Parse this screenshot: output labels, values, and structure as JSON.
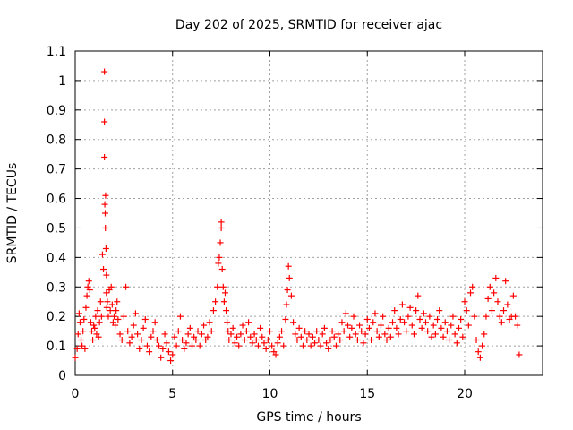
{
  "chart_data": {
    "type": "scatter",
    "title": "Day 202 of 2025, SRMTID for receiver ajac",
    "xlabel": "GPS time / hours",
    "ylabel": "SRMTID / TECUs",
    "xlim": [
      0,
      24
    ],
    "ylim": [
      0,
      1.1
    ],
    "x_ticks": [
      0,
      5,
      10,
      15,
      20
    ],
    "x_tick_labels": [
      "0",
      "5",
      "10",
      "15",
      "20"
    ],
    "y_ticks": [
      0,
      0.1,
      0.2,
      0.3,
      0.4,
      0.5,
      0.6,
      0.7,
      0.8,
      0.9,
      1,
      1.1
    ],
    "y_tick_labels": [
      "0",
      "0.1",
      "0.2",
      "0.3",
      "0.4",
      "0.5",
      "0.6",
      "0.7",
      "0.8",
      "0.9",
      "1",
      "1.1"
    ],
    "grid": true,
    "marker": "+",
    "color": "#ff0000",
    "series": [
      {
        "name": "SRMTID",
        "x": [
          0.0,
          0.1,
          0.15,
          0.2,
          0.25,
          0.3,
          0.35,
          0.4,
          0.45,
          0.5,
          0.55,
          0.6,
          0.65,
          0.7,
          0.75,
          0.8,
          0.85,
          0.9,
          0.95,
          1.0,
          1.05,
          1.1,
          1.15,
          1.2,
          1.25,
          1.3,
          1.35,
          1.4,
          1.45,
          1.5,
          1.5,
          1.5,
          1.52,
          1.54,
          1.55,
          1.56,
          1.58,
          1.6,
          1.6,
          1.62,
          1.65,
          1.7,
          1.75,
          1.8,
          1.85,
          1.9,
          1.95,
          2.0,
          2.05,
          2.1,
          2.15,
          2.2,
          2.3,
          2.4,
          2.5,
          2.6,
          2.7,
          2.8,
          2.9,
          3.0,
          3.1,
          3.2,
          3.3,
          3.4,
          3.5,
          3.6,
          3.7,
          3.8,
          3.9,
          4.0,
          4.1,
          4.2,
          4.3,
          4.4,
          4.5,
          4.6,
          4.7,
          4.8,
          4.9,
          5.0,
          5.1,
          5.2,
          5.3,
          5.4,
          5.5,
          5.6,
          5.7,
          5.8,
          5.9,
          6.0,
          6.1,
          6.2,
          6.3,
          6.4,
          6.5,
          6.6,
          6.7,
          6.8,
          6.9,
          7.0,
          7.1,
          7.2,
          7.3,
          7.35,
          7.4,
          7.45,
          7.5,
          7.5,
          7.55,
          7.6,
          7.65,
          7.7,
          7.75,
          7.8,
          7.85,
          7.9,
          8.0,
          8.1,
          8.2,
          8.3,
          8.4,
          8.5,
          8.6,
          8.7,
          8.8,
          8.9,
          9.0,
          9.1,
          9.2,
          9.3,
          9.4,
          9.5,
          9.6,
          9.7,
          9.8,
          9.9,
          10.0,
          10.1,
          10.2,
          10.3,
          10.4,
          10.5,
          10.6,
          10.7,
          10.8,
          10.85,
          10.9,
          10.95,
          11.0,
          11.1,
          11.2,
          11.3,
          11.4,
          11.5,
          11.6,
          11.7,
          11.8,
          11.9,
          12.0,
          12.1,
          12.2,
          12.3,
          12.4,
          12.5,
          12.6,
          12.7,
          12.8,
          12.9,
          13.0,
          13.1,
          13.2,
          13.3,
          13.4,
          13.5,
          13.6,
          13.7,
          13.8,
          13.9,
          14.0,
          14.1,
          14.2,
          14.3,
          14.4,
          14.5,
          14.6,
          14.7,
          14.8,
          14.9,
          15.0,
          15.1,
          15.2,
          15.3,
          15.4,
          15.5,
          15.6,
          15.7,
          15.8,
          15.9,
          16.0,
          16.1,
          16.2,
          16.3,
          16.4,
          16.5,
          16.6,
          16.7,
          16.8,
          16.9,
          17.0,
          17.1,
          17.2,
          17.3,
          17.4,
          17.5,
          17.6,
          17.7,
          17.8,
          17.9,
          18.0,
          18.1,
          18.2,
          18.3,
          18.4,
          18.5,
          18.6,
          18.7,
          18.8,
          18.9,
          19.0,
          19.1,
          19.2,
          19.3,
          19.4,
          19.5,
          19.6,
          19.7,
          19.8,
          19.9,
          20.0,
          20.1,
          20.2,
          20.3,
          20.4,
          20.5,
          20.6,
          20.7,
          20.8,
          20.9,
          21.0,
          21.1,
          21.2,
          21.3,
          21.4,
          21.5,
          21.6,
          21.7,
          21.8,
          21.9,
          22.0,
          22.1,
          22.2,
          22.3,
          22.4,
          22.5,
          22.6,
          22.7,
          22.8
        ],
        "y": [
          0.06,
          0.09,
          0.14,
          0.21,
          0.18,
          0.12,
          0.1,
          0.15,
          0.19,
          0.09,
          0.23,
          0.27,
          0.3,
          0.32,
          0.29,
          0.18,
          0.15,
          0.12,
          0.17,
          0.16,
          0.2,
          0.14,
          0.22,
          0.13,
          0.18,
          0.25,
          0.2,
          0.41,
          0.36,
          1.03,
          0.86,
          0.74,
          0.58,
          0.55,
          0.5,
          0.61,
          0.43,
          0.34,
          0.28,
          0.23,
          0.25,
          0.2,
          0.29,
          0.22,
          0.3,
          0.24,
          0.18,
          0.2,
          0.17,
          0.22,
          0.25,
          0.19,
          0.14,
          0.12,
          0.2,
          0.3,
          0.15,
          0.11,
          0.13,
          0.17,
          0.21,
          0.14,
          0.09,
          0.12,
          0.16,
          0.19,
          0.1,
          0.08,
          0.13,
          0.15,
          0.18,
          0.12,
          0.1,
          0.06,
          0.09,
          0.14,
          0.11,
          0.08,
          0.05,
          0.07,
          0.13,
          0.1,
          0.15,
          0.2,
          0.12,
          0.09,
          0.11,
          0.14,
          0.16,
          0.1,
          0.13,
          0.12,
          0.15,
          0.1,
          0.14,
          0.17,
          0.12,
          0.13,
          0.18,
          0.15,
          0.22,
          0.25,
          0.3,
          0.38,
          0.4,
          0.45,
          0.52,
          0.5,
          0.36,
          0.3,
          0.25,
          0.28,
          0.22,
          0.18,
          0.15,
          0.12,
          0.14,
          0.16,
          0.11,
          0.13,
          0.1,
          0.14,
          0.17,
          0.12,
          0.15,
          0.18,
          0.13,
          0.11,
          0.14,
          0.12,
          0.1,
          0.16,
          0.13,
          0.11,
          0.09,
          0.12,
          0.15,
          0.1,
          0.08,
          0.07,
          0.11,
          0.13,
          0.15,
          0.1,
          0.19,
          0.24,
          0.29,
          0.37,
          0.33,
          0.27,
          0.18,
          0.14,
          0.12,
          0.16,
          0.13,
          0.1,
          0.15,
          0.12,
          0.14,
          0.1,
          0.13,
          0.11,
          0.15,
          0.12,
          0.1,
          0.14,
          0.16,
          0.11,
          0.09,
          0.12,
          0.15,
          0.13,
          0.1,
          0.14,
          0.12,
          0.18,
          0.15,
          0.21,
          0.17,
          0.13,
          0.16,
          0.2,
          0.14,
          0.12,
          0.17,
          0.15,
          0.11,
          0.14,
          0.19,
          0.16,
          0.12,
          0.18,
          0.21,
          0.15,
          0.13,
          0.17,
          0.2,
          0.14,
          0.12,
          0.16,
          0.13,
          0.18,
          0.22,
          0.16,
          0.14,
          0.19,
          0.24,
          0.18,
          0.15,
          0.2,
          0.23,
          0.17,
          0.14,
          0.22,
          0.27,
          0.19,
          0.16,
          0.21,
          0.18,
          0.15,
          0.2,
          0.13,
          0.17,
          0.14,
          0.19,
          0.22,
          0.16,
          0.13,
          0.18,
          0.15,
          0.12,
          0.17,
          0.2,
          0.14,
          0.11,
          0.16,
          0.19,
          0.13,
          0.25,
          0.22,
          0.17,
          0.28,
          0.3,
          0.2,
          0.12,
          0.08,
          0.06,
          0.1,
          0.14,
          0.2,
          0.26,
          0.3,
          0.22,
          0.28,
          0.33,
          0.25,
          0.2,
          0.18,
          0.22,
          0.32,
          0.24,
          0.19,
          0.2,
          0.27,
          0.2,
          0.17,
          0.07
        ]
      }
    ]
  }
}
